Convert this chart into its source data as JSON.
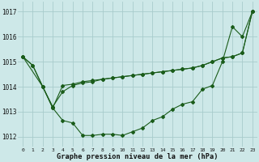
{
  "title": "Graphe pression niveau de la mer (hPa)",
  "background_color": "#cde8e8",
  "grid_color": "#a8cccc",
  "line_color": "#1a5c1a",
  "x_ticks": [
    0,
    1,
    2,
    3,
    4,
    5,
    6,
    7,
    8,
    9,
    10,
    11,
    12,
    13,
    14,
    15,
    16,
    17,
    18,
    19,
    20,
    21,
    22,
    23
  ],
  "y_ticks": [
    1012,
    1013,
    1014,
    1015,
    1016,
    1017
  ],
  "ylim": [
    1011.6,
    1017.4
  ],
  "xlim": [
    -0.5,
    23.5
  ],
  "series": [
    {
      "x": [
        0,
        1,
        2,
        3,
        4,
        5,
        6,
        7,
        8,
        9,
        10,
        11,
        12,
        13,
        14,
        15,
        16,
        17,
        18,
        19,
        20,
        21,
        22,
        23
      ],
      "y": [
        1015.2,
        1014.85,
        1014.0,
        1013.15,
        1012.65,
        1012.55,
        1012.05,
        1012.05,
        1012.1,
        1012.1,
        1012.05,
        1012.2,
        1012.35,
        1012.65,
        1012.8,
        1013.1,
        1013.3,
        1013.4,
        1013.9,
        1014.05,
        1015.0,
        1016.4,
        1016.0,
        1017.0
      ]
    },
    {
      "x": [
        0,
        1,
        2,
        3,
        4,
        5,
        6,
        7,
        8,
        9,
        10,
        11,
        12,
        13,
        14,
        15,
        16,
        17,
        18,
        19,
        20,
        21,
        22,
        23
      ],
      "y": [
        1015.2,
        1014.85,
        1014.0,
        1013.15,
        1014.05,
        1014.1,
        1014.2,
        1014.25,
        1014.3,
        1014.35,
        1014.4,
        1014.45,
        1014.5,
        1014.55,
        1014.6,
        1014.65,
        1014.7,
        1014.75,
        1014.85,
        1015.0,
        1015.15,
        1015.2,
        1015.35,
        1017.0
      ]
    },
    {
      "x": [
        0,
        2,
        3,
        4,
        5,
        6,
        7,
        8,
        9,
        10,
        11,
        12,
        13,
        14,
        15,
        16,
        17,
        18,
        19,
        20,
        21,
        22,
        23
      ],
      "y": [
        1015.2,
        1014.0,
        1013.2,
        1013.8,
        1014.05,
        1014.15,
        1014.2,
        1014.3,
        1014.35,
        1014.4,
        1014.45,
        1014.5,
        1014.55,
        1014.6,
        1014.65,
        1014.7,
        1014.75,
        1014.85,
        1015.0,
        1015.15,
        1015.2,
        1015.35,
        1017.0
      ]
    }
  ]
}
